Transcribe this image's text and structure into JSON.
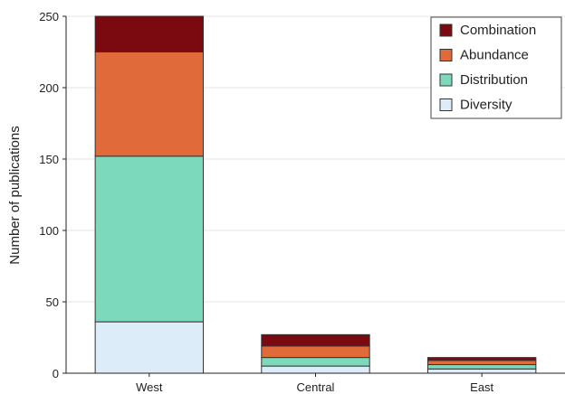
{
  "chart_data": {
    "type": "bar",
    "stacked": true,
    "title": "",
    "xlabel": "",
    "ylabel": "Number of publications",
    "ylim": [
      0,
      250
    ],
    "yticks": [
      0,
      50,
      100,
      150,
      200,
      250
    ],
    "grid": true,
    "legend_position": "top-right",
    "categories": [
      "West",
      "Central",
      "East"
    ],
    "series": [
      {
        "name": "Diversity",
        "color": "#dcecf8",
        "values": [
          36,
          5,
          3
        ]
      },
      {
        "name": "Distribution",
        "color": "#7dd9bb",
        "values": [
          116,
          6,
          3
        ]
      },
      {
        "name": "Abundance",
        "color": "#e06a3a",
        "values": [
          73,
          8,
          3
        ]
      },
      {
        "name": "Combination",
        "color": "#7b0a10",
        "values": [
          25,
          8,
          2
        ]
      }
    ],
    "legend_order": [
      "Combination",
      "Abundance",
      "Distribution",
      "Diversity"
    ]
  }
}
